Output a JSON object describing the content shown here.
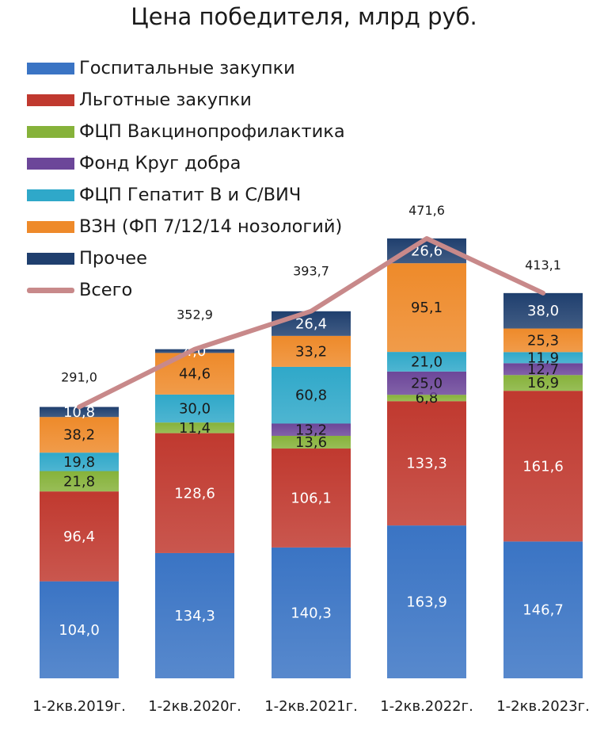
{
  "chart_data": {
    "type": "bar",
    "stacked": true,
    "title": "Цена победителя, млрд руб.",
    "categories": [
      "1-2кв.2019г.",
      "1-2кв.2020г.",
      "1-2кв.2021г.",
      "1-2кв.2022г.",
      "1-2кв.2023г."
    ],
    "series": [
      {
        "name": "Госпитальные закупки",
        "color": "#3A74C4",
        "values": [
          104.0,
          134.3,
          140.3,
          163.9,
          146.7
        ],
        "labels": [
          "104,0",
          "134,3",
          "140,3",
          "163,9",
          "146,7"
        ]
      },
      {
        "name": "Льготные закупки",
        "color": "#C0392F",
        "values": [
          96.4,
          128.6,
          106.1,
          133.3,
          161.6
        ],
        "labels": [
          "96,4",
          "128,6",
          "106,1",
          "133,3",
          "161,6"
        ]
      },
      {
        "name": "ФЦП Вакцинопрофилактика",
        "color": "#86B23A",
        "values": [
          21.8,
          11.4,
          13.6,
          6.8,
          16.9
        ],
        "labels": [
          "21,8",
          "11,4",
          "13,6",
          "6,8",
          "16,9"
        ]
      },
      {
        "name": "Фонд Круг добра",
        "color": "#6C4699",
        "values": [
          0,
          0,
          13.2,
          25.0,
          12.7
        ],
        "labels": [
          "",
          "",
          "13,2",
          "25,0",
          "12,7"
        ]
      },
      {
        "name": "ФЦП Гепатит В и С/ВИЧ",
        "color": "#2FA8C9",
        "values": [
          19.8,
          30.0,
          60.8,
          21.0,
          11.9
        ],
        "labels": [
          "19,8",
          "30,0",
          "60,8",
          "21,0",
          "11,9"
        ]
      },
      {
        "name": "ВЗН (ФП 7/12/14 нозологий)",
        "color": "#EE8A2A",
        "values": [
          38.2,
          44.6,
          33.2,
          95.1,
          25.3
        ],
        "labels": [
          "38,2",
          "44,6",
          "33,2",
          "95,1",
          "25,3"
        ]
      },
      {
        "name": "Прочее",
        "color": "#1F3F6E",
        "values": [
          10.8,
          4.0,
          26.4,
          26.6,
          38.0
        ],
        "labels": [
          "10,8",
          "4,0",
          "26,4",
          "26,6",
          "38,0"
        ]
      }
    ],
    "total": {
      "name": "Всего",
      "color": "#C8898A",
      "values": [
        291.0,
        352.9,
        393.7,
        471.6,
        413.1
      ],
      "labels": [
        "291,0",
        "352,9",
        "393,7",
        "471,6",
        "413,1"
      ]
    },
    "legend_position": "top-left",
    "grid": false
  }
}
